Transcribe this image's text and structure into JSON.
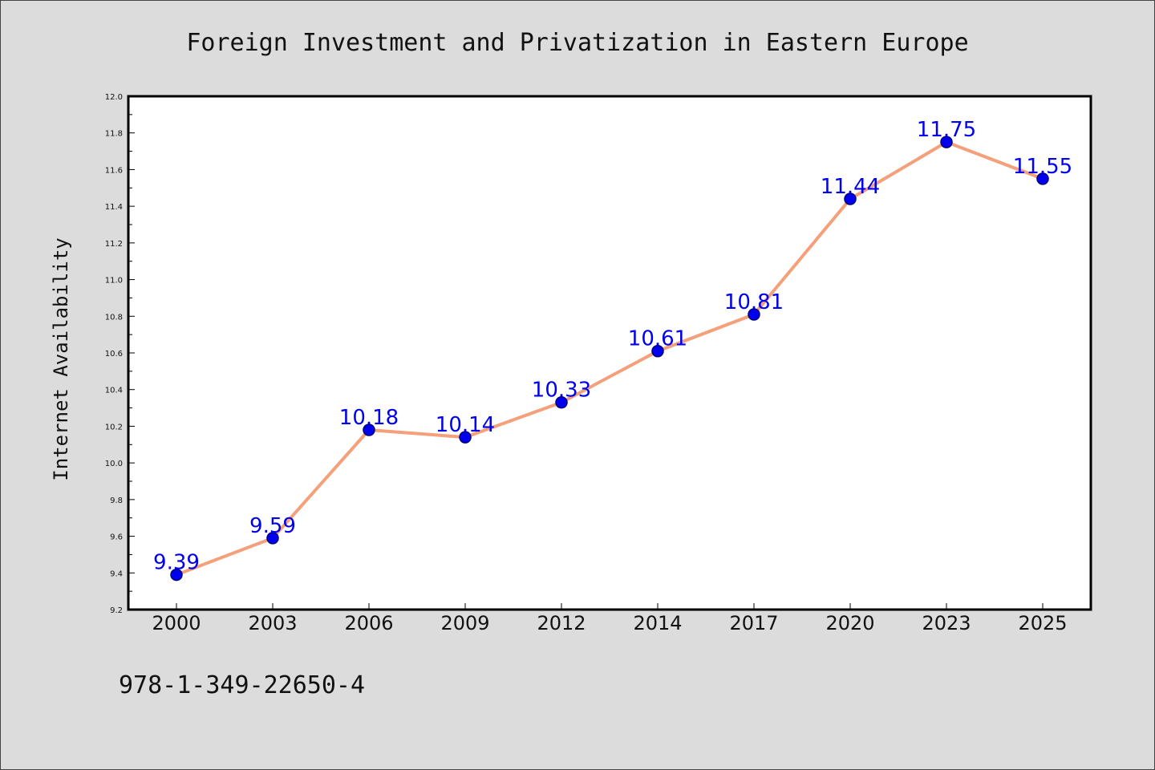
{
  "chart_data": {
    "type": "line",
    "title": "Foreign Investment and Privatization in Eastern Europe",
    "xlabel": "",
    "ylabel": "Internet Availability",
    "categories": [
      "2000",
      "2003",
      "2006",
      "2009",
      "2012",
      "2014",
      "2017",
      "2020",
      "2023",
      "2025"
    ],
    "series": [
      {
        "values": [
          9.39,
          9.59,
          10.18,
          10.14,
          10.33,
          10.61,
          10.81,
          11.44,
          11.75,
          11.55
        ],
        "labels": [
          "9.39",
          "9.59",
          "10.18",
          "10.14",
          "10.33",
          "10.61",
          "10.81",
          "11.44",
          "11.75",
          "11.55"
        ]
      }
    ],
    "ylim": [
      9.2,
      12.0
    ],
    "yticks": [
      "9.2",
      "9.4",
      "9.6",
      "9.8",
      "10.0",
      "10.2",
      "10.4",
      "10.6",
      "10.8",
      "11.0",
      "11.2",
      "11.4",
      "11.6",
      "11.8",
      "12.0"
    ],
    "grid": false,
    "legend": "none",
    "colors": {
      "line": "#f4a07a",
      "marker_fill": "#0000ee",
      "marker_edge": "#00007a",
      "data_label": "#0000ee",
      "plot_bg": "#ffffff",
      "figure_bg": "#dcdcdc"
    }
  },
  "footer": {
    "code": "978-1-349-22650-4"
  }
}
